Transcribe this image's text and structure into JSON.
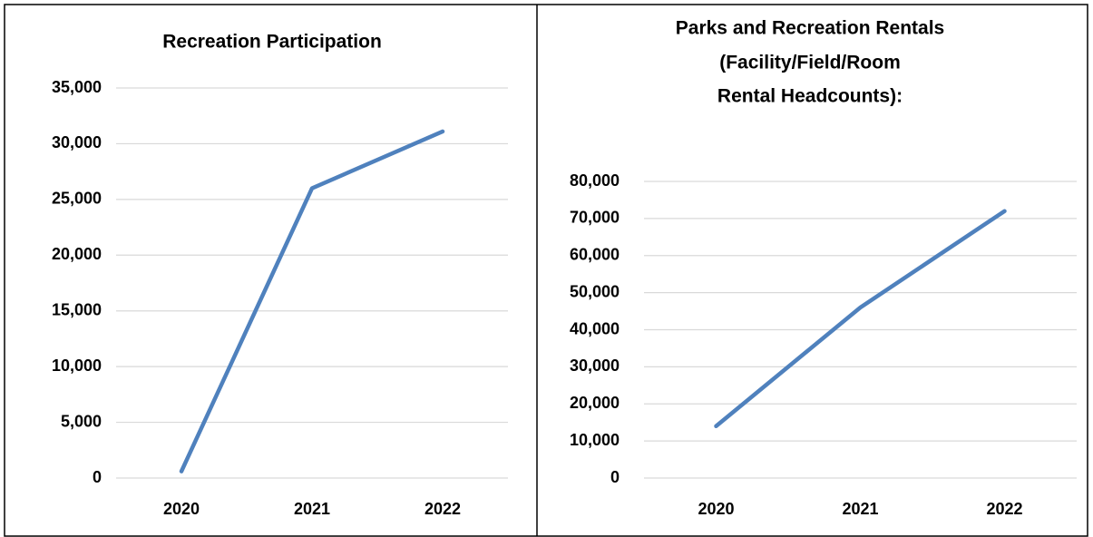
{
  "chart_data": [
    {
      "type": "line",
      "title": [
        "Recreation Participation"
      ],
      "categories": [
        "2020",
        "2021",
        "2022"
      ],
      "series": [
        {
          "name": "Recreation Participation",
          "color": "#4f81bd",
          "values": [
            600,
            26000,
            31100
          ]
        }
      ],
      "ylim": [
        0,
        35000
      ],
      "yticks": [
        0,
        {
          "value": 5000,
          "label": "5,000"
        },
        {
          "value": 10000,
          "label": "10,000"
        },
        {
          "value": 15000,
          "label": "15,000"
        },
        {
          "value": 20000,
          "label": "20,000"
        },
        {
          "value": 25000,
          "label": "25,000"
        },
        {
          "value": 30000,
          "label": "30,000"
        },
        {
          "value": 35000,
          "label": "35,000"
        }
      ],
      "grid": true
    },
    {
      "type": "line",
      "title": [
        "Parks and Recreation Rentals",
        "(Facility/Field/Room",
        "Rental Headcounts):"
      ],
      "categories": [
        "2020",
        "2021",
        "2022"
      ],
      "series": [
        {
          "name": "Parks and Recreation Rentals",
          "color": "#4f81bd",
          "values": [
            14000,
            46000,
            72000
          ]
        }
      ],
      "ylim": [
        0,
        80000
      ],
      "yticks": [
        0,
        {
          "value": 10000,
          "label": "10,000"
        },
        {
          "value": 20000,
          "label": "20,000"
        },
        {
          "value": 30000,
          "label": "30,000"
        },
        {
          "value": 40000,
          "label": "40,000"
        },
        {
          "value": 50000,
          "label": "50,000"
        },
        {
          "value": 60000,
          "label": "60,000"
        },
        {
          "value": 70000,
          "label": "70,000"
        },
        {
          "value": 80000,
          "label": "80,000"
        }
      ],
      "grid": true
    }
  ]
}
